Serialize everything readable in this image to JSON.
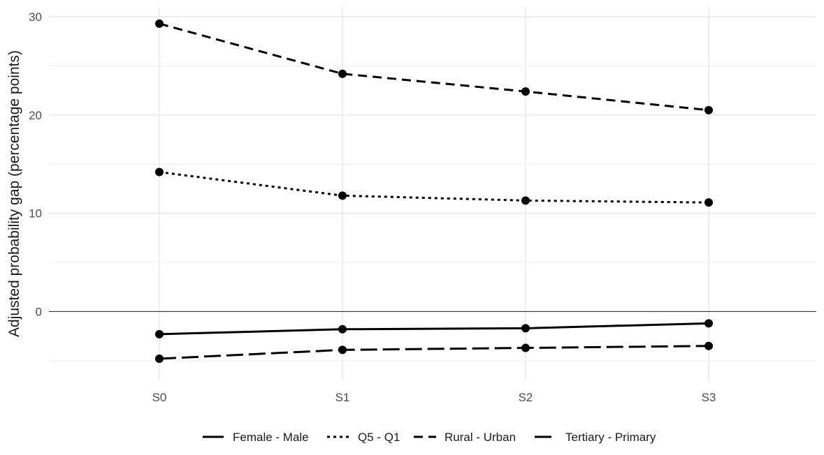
{
  "chart_data": {
    "type": "line",
    "title": "",
    "xlabel": "",
    "ylabel": "Adjusted probability gap (percentage points)",
    "categories": [
      "S0",
      "S1",
      "S2",
      "S3"
    ],
    "ylim": [
      -7,
      31
    ],
    "yticks": [
      0,
      10,
      20,
      30
    ],
    "grid": true,
    "zero_line": true,
    "legend_position": "bottom",
    "series": [
      {
        "name": "Female - Male",
        "linetype": "solid",
        "values": [
          -2.3,
          -1.8,
          -1.7,
          -1.2
        ]
      },
      {
        "name": "Q5 - Q1",
        "linetype": "dotted",
        "values": [
          14.2,
          11.8,
          11.3,
          11.1
        ]
      },
      {
        "name": "Rural - Urban",
        "linetype": "dashed",
        "values": [
          29.3,
          24.2,
          22.4,
          20.5
        ]
      },
      {
        "name": "Tertiary - Primary",
        "linetype": "longdash",
        "values": [
          -4.8,
          -3.9,
          -3.7,
          -3.5
        ]
      }
    ],
    "colors": {
      "lines": "#000000",
      "grid": "#e6e6e6",
      "zero_line": "#333333"
    }
  }
}
